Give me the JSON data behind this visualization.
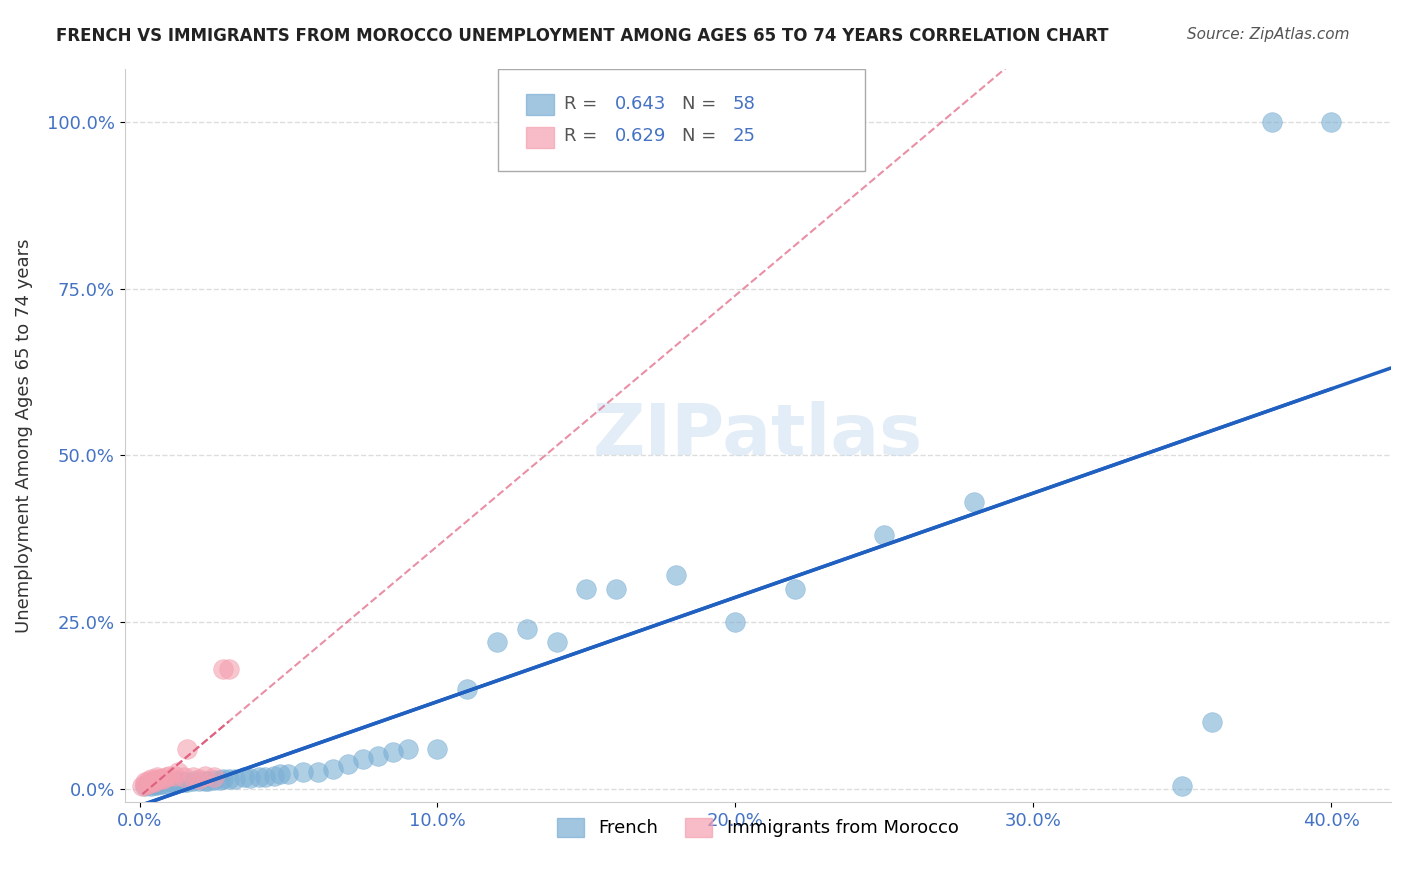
{
  "title": "FRENCH VS IMMIGRANTS FROM MOROCCO UNEMPLOYMENT AMONG AGES 65 TO 74 YEARS CORRELATION CHART",
  "source": "Source: ZipAtlas.com",
  "xlabel_ticks": [
    "0.0%",
    "10.0%",
    "20.0%",
    "30.0%",
    "40.0%"
  ],
  "xlabel_tick_vals": [
    0.0,
    0.1,
    0.2,
    0.3,
    0.4
  ],
  "ylabel": "Unemployment Among Ages 65 to 74 years",
  "ylabel_ticks": [
    "0.0%",
    "25.0%",
    "50.0%",
    "75.0%",
    "100.0%"
  ],
  "ylabel_tick_vals": [
    0.0,
    0.25,
    0.5,
    0.75,
    1.0
  ],
  "xlim": [
    -0.005,
    0.42
  ],
  "ylim": [
    -0.02,
    1.08
  ],
  "legend_french_R": "0.643",
  "legend_french_N": "58",
  "legend_morocco_R": "0.629",
  "legend_morocco_N": "25",
  "french_color": "#7bafd4",
  "morocco_color": "#f4a0b0",
  "french_line_color": "#2060c0",
  "morocco_line_color": "#e06080",
  "watermark": "ZIPatlas",
  "french_scatter_x": [
    0.002,
    0.003,
    0.003,
    0.004,
    0.004,
    0.005,
    0.005,
    0.006,
    0.007,
    0.008,
    0.01,
    0.011,
    0.012,
    0.013,
    0.013,
    0.014,
    0.015,
    0.016,
    0.018,
    0.02,
    0.022,
    0.023,
    0.025,
    0.027,
    0.028,
    0.03,
    0.032,
    0.035,
    0.037,
    0.04,
    0.042,
    0.045,
    0.047,
    0.05,
    0.055,
    0.06,
    0.065,
    0.07,
    0.075,
    0.08,
    0.085,
    0.09,
    0.1,
    0.11,
    0.12,
    0.13,
    0.14,
    0.15,
    0.16,
    0.18,
    0.2,
    0.22,
    0.25,
    0.28,
    0.35,
    0.36,
    0.38,
    0.4
  ],
  "french_scatter_y": [
    0.005,
    0.006,
    0.008,
    0.005,
    0.01,
    0.006,
    0.008,
    0.006,
    0.007,
    0.008,
    0.008,
    0.01,
    0.009,
    0.01,
    0.012,
    0.01,
    0.011,
    0.01,
    0.012,
    0.012,
    0.012,
    0.012,
    0.014,
    0.013,
    0.015,
    0.015,
    0.015,
    0.018,
    0.016,
    0.018,
    0.018,
    0.02,
    0.022,
    0.022,
    0.025,
    0.025,
    0.03,
    0.038,
    0.045,
    0.05,
    0.055,
    0.06,
    0.06,
    0.15,
    0.22,
    0.24,
    0.22,
    0.3,
    0.3,
    0.32,
    0.25,
    0.3,
    0.38,
    0.43,
    0.005,
    0.1,
    1.0,
    1.0
  ],
  "morocco_scatter_x": [
    0.001,
    0.002,
    0.002,
    0.003,
    0.003,
    0.004,
    0.004,
    0.005,
    0.005,
    0.006,
    0.006,
    0.007,
    0.008,
    0.009,
    0.01,
    0.012,
    0.013,
    0.015,
    0.016,
    0.018,
    0.02,
    0.022,
    0.025,
    0.028,
    0.03
  ],
  "morocco_scatter_y": [
    0.005,
    0.006,
    0.01,
    0.008,
    0.012,
    0.01,
    0.015,
    0.012,
    0.01,
    0.015,
    0.018,
    0.015,
    0.015,
    0.018,
    0.02,
    0.02,
    0.025,
    0.018,
    0.06,
    0.018,
    0.015,
    0.02,
    0.018,
    0.18,
    0.18
  ]
}
